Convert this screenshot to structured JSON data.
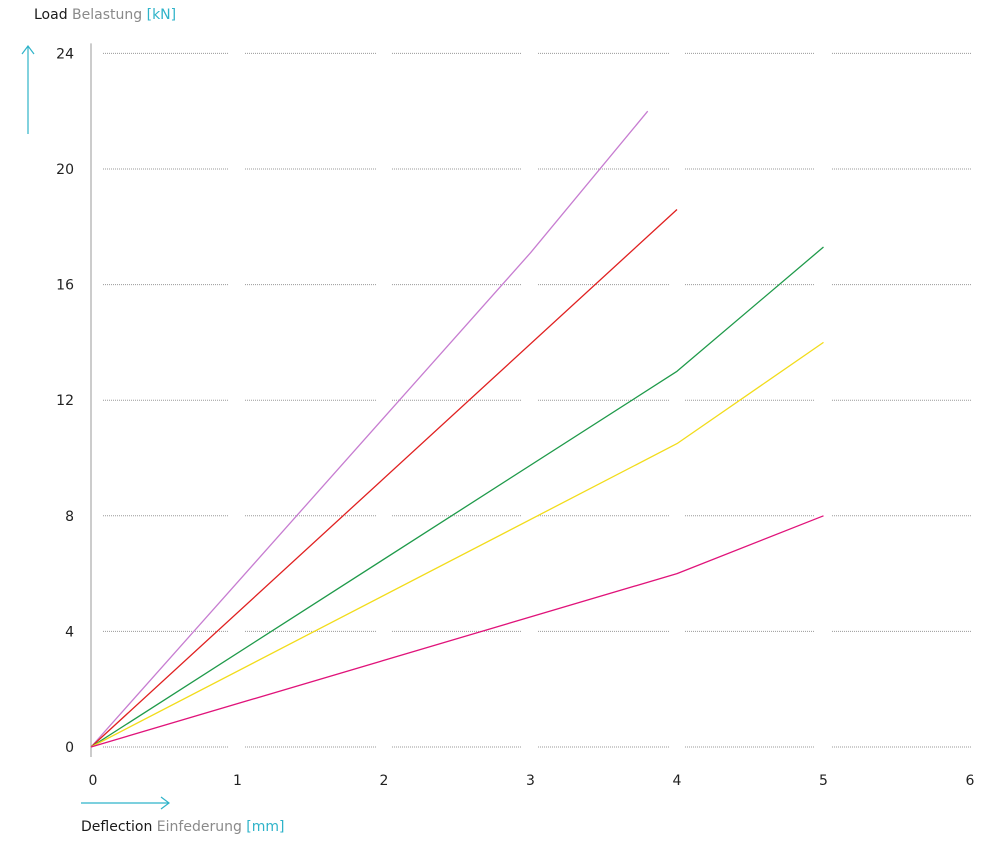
{
  "y_axis_title": {
    "main": "Load",
    "sub": "Belastung",
    "unit": "[kN]"
  },
  "x_axis_title": {
    "main": "Deflection",
    "sub": "Einfederung",
    "unit": "[mm]"
  },
  "colors": {
    "accent": "#2fb3c9",
    "grid": "#9a9a9a",
    "axis": "#999999"
  },
  "chart_data": {
    "type": "line",
    "xlabel": "Deflection Einfederung [mm]",
    "ylabel": "Load Belastung [kN]",
    "xlim": [
      0,
      6
    ],
    "ylim": [
      0,
      24
    ],
    "x_ticks": [
      0,
      1,
      2,
      3,
      4,
      5,
      6
    ],
    "y_ticks": [
      0,
      4,
      8,
      12,
      16,
      20,
      24
    ],
    "grid": "horizontal dotted",
    "legend": "none",
    "series": [
      {
        "color": "#c77dd1",
        "points": [
          [
            0,
            0
          ],
          [
            3,
            17.1
          ],
          [
            3.8,
            22
          ]
        ]
      },
      {
        "color": "#e02020",
        "points": [
          [
            0,
            0
          ],
          [
            4,
            18.6
          ]
        ]
      },
      {
        "color": "#1f9a4a",
        "points": [
          [
            0,
            0
          ],
          [
            4,
            13
          ],
          [
            5,
            17.3
          ]
        ]
      },
      {
        "color": "#f2dc1b",
        "points": [
          [
            0,
            0
          ],
          [
            4,
            10.5
          ],
          [
            5,
            14
          ]
        ]
      },
      {
        "color": "#e0137a",
        "points": [
          [
            0,
            0
          ],
          [
            4,
            6
          ],
          [
            5,
            8
          ]
        ]
      }
    ]
  }
}
